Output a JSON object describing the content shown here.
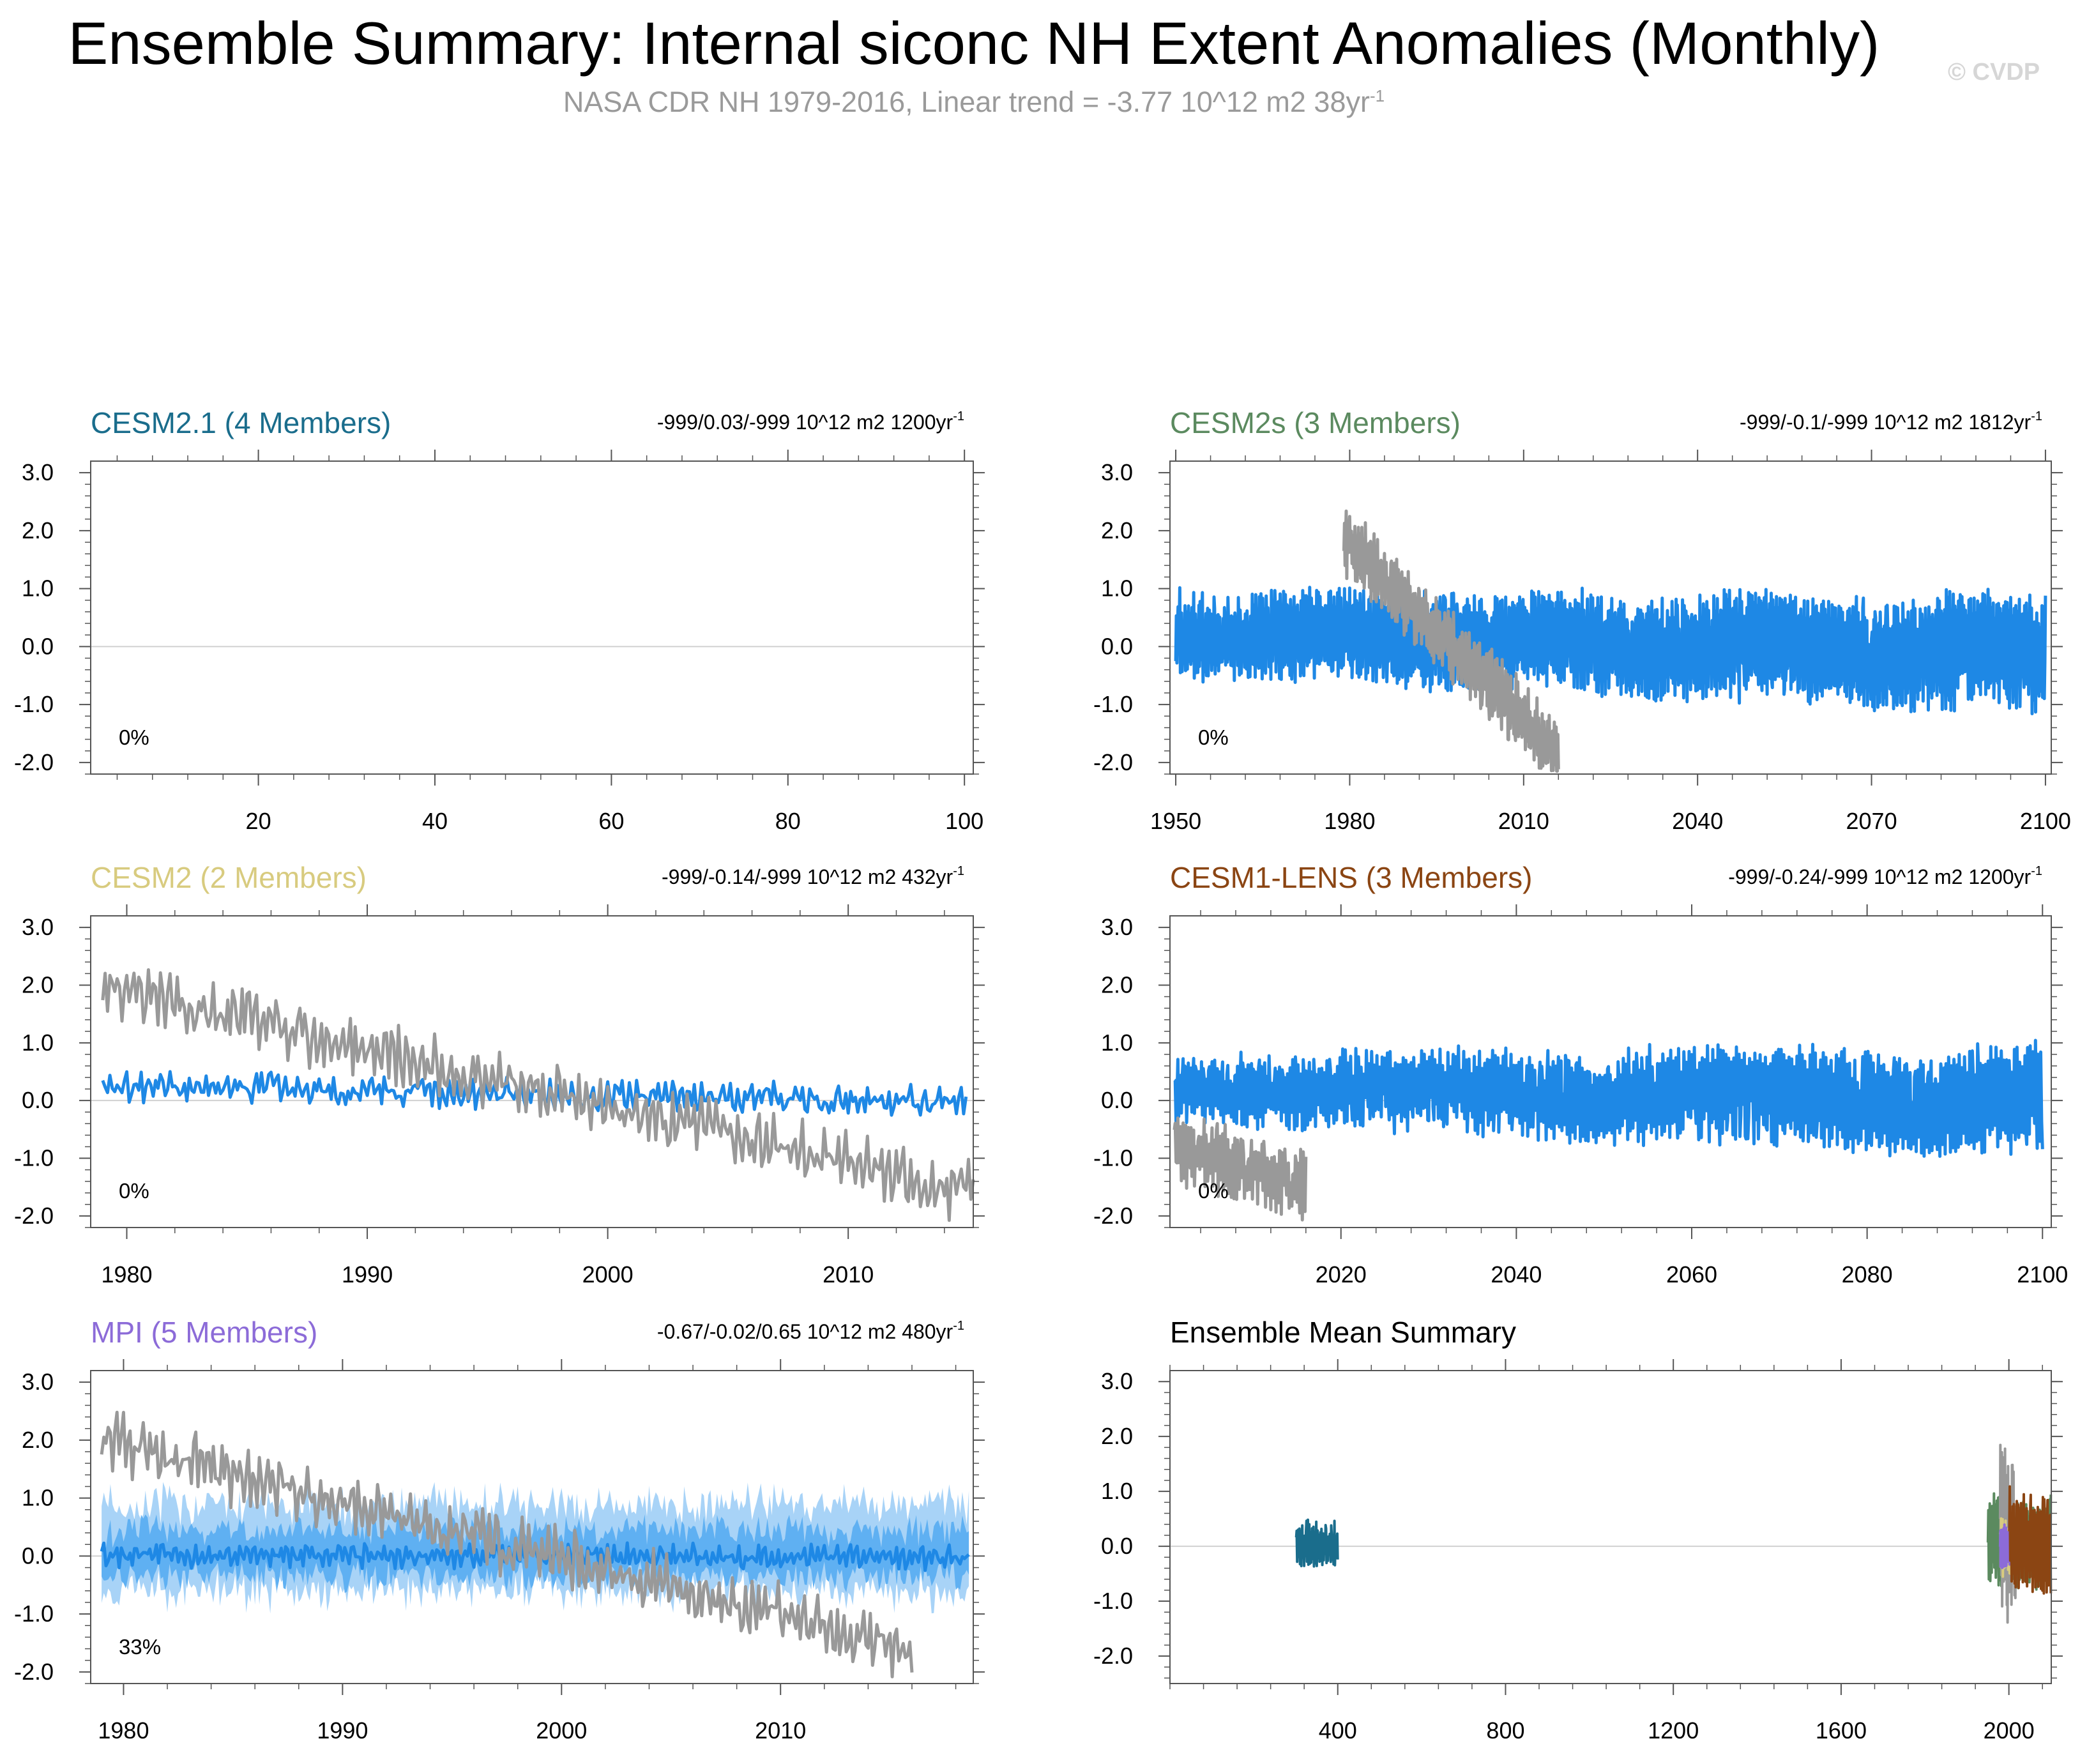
{
  "title": "Ensemble Summary: Internal siconc NH Extent Anomalies (Monthly)",
  "subtitle": "NASA CDR NH 1979-2016, Linear trend = -3.77 10^12 m2 38yr",
  "subtitle_sup": "-1",
  "copyright": "© CVDP",
  "colors": {
    "observations": "#999999",
    "ensemble_line": "#1e88e5",
    "spread_light": "#a8d3f7",
    "spread_mid": "#5fb0f2",
    "axis": "#555555",
    "zero_line": "#d0d0d0"
  },
  "chart_data": [
    {
      "id": "cesm21",
      "type": "line",
      "title": "CESM2.1 (4 Members)",
      "title_color": "#1a6d8c",
      "trend": "-999/0.03/-999 10^12 m2 1200yr",
      "trend_sup": "-1",
      "pct": "0%",
      "xlim": [
        1,
        101
      ],
      "ylim": [
        -2.2,
        3.2
      ],
      "xticks": [
        20,
        40,
        60,
        80,
        100
      ],
      "yticks": [
        3.0,
        2.0,
        1.0,
        0.0,
        -1.0,
        -2.0
      ],
      "ytick_labels": [
        "3.0",
        "2.0",
        "1.0",
        "0.0",
        "-1.0",
        "-2.0"
      ],
      "series": []
    },
    {
      "id": "cesm2s",
      "type": "line",
      "title": "CESM2s (3 Members)",
      "title_color": "#5b8a5f",
      "trend": "-999/-0.1/-999 10^12 m2 1812yr",
      "trend_sup": "-1",
      "pct": "0%",
      "xlim": [
        1949,
        2101
      ],
      "ylim": [
        -2.2,
        3.2
      ],
      "xticks": [
        1950,
        1980,
        2010,
        2040,
        2070,
        2100
      ],
      "yticks": [
        3.0,
        2.0,
        1.0,
        0.0,
        -1.0,
        -2.0
      ],
      "ytick_labels": [
        "3.0",
        "2.0",
        "1.0",
        "0.0",
        "-1.0",
        "-2.0"
      ],
      "series": [
        {
          "name": "ensemble",
          "color": "#1e88e5",
          "x_start": 1950,
          "x_end": 2100,
          "mean": 0.05,
          "trend": -0.35,
          "amp_start": 0.6,
          "amp_end": 0.9,
          "noise": 0.22
        },
        {
          "name": "observations",
          "color": "#999999",
          "x_start": 1979,
          "x_end": 2016,
          "mean": 0.0,
          "trend": -3.8,
          "amp_start": 0.45,
          "amp_end": 0.45,
          "noise": 0.25
        }
      ]
    },
    {
      "id": "cesm2",
      "type": "line",
      "title": "CESM2 (2 Members)",
      "title_color": "#d8cb7f",
      "trend": "-999/-0.14/-999 10^12 m2 432yr",
      "trend_sup": "-1",
      "pct": "0%",
      "xlim": [
        1978.5,
        2015.2
      ],
      "ylim": [
        -2.2,
        3.2
      ],
      "xticks": [
        1980,
        1990,
        2000,
        2010
      ],
      "yticks": [
        3.0,
        2.0,
        1.0,
        0.0,
        -1.0,
        -2.0
      ],
      "ytick_labels": [
        "3.0",
        "2.0",
        "1.0",
        "0.0",
        "-1.0",
        "-2.0"
      ],
      "series": [
        {
          "name": "ensemble",
          "color": "#1e88e5",
          "x_start": 1979,
          "x_end": 2014.9,
          "mean": 0.12,
          "trend": -0.3,
          "amp_start": 0.12,
          "amp_end": 0.12,
          "noise": 0.18
        },
        {
          "name": "observations",
          "color": "#999999",
          "x_start": 1979,
          "x_end": 2015.2,
          "mean": 0.2,
          "trend": -3.6,
          "amp_start": 0.3,
          "amp_end": 0.3,
          "noise": 0.3
        }
      ]
    },
    {
      "id": "cesm1lens",
      "type": "line",
      "title": "CESM1-LENS (3 Members)",
      "title_color": "#8b4513",
      "trend": "-999/-0.24/-999 10^12 m2 1200yr",
      "trend_sup": "-1",
      "pct": "0%",
      "xlim": [
        2000.5,
        2101
      ],
      "ylim": [
        -2.2,
        3.2
      ],
      "xticks": [
        2020,
        2040,
        2060,
        2080,
        2100
      ],
      "yticks": [
        3.0,
        2.0,
        1.0,
        0.0,
        -1.0,
        -2.0
      ],
      "ytick_labels": [
        "3.0",
        "2.0",
        "1.0",
        "0.0",
        "-1.0",
        "-2.0"
      ],
      "series": [
        {
          "name": "ensemble",
          "color": "#1e88e5",
          "x_start": 2001,
          "x_end": 2100,
          "mean": 0.1,
          "trend": -0.25,
          "amp_start": 0.5,
          "amp_end": 0.9,
          "noise": 0.18
        },
        {
          "name": "observations",
          "color": "#999999",
          "x_start": 2001,
          "x_end": 2016,
          "mean": -1.1,
          "trend": -0.6,
          "amp_start": 0.45,
          "amp_end": 0.45,
          "noise": 0.25
        }
      ]
    },
    {
      "id": "mpi",
      "type": "area",
      "title": "MPI (5 Members)",
      "title_color": "#8c6bd8",
      "trend": "-0.67/-0.02/0.65 10^12 m2 480yr",
      "trend_sup": "-1",
      "pct": "33%",
      "xlim": [
        1978.5,
        2018.8
      ],
      "ylim": [
        -2.2,
        3.2
      ],
      "xticks": [
        1980,
        1990,
        2000,
        2010
      ],
      "yticks": [
        3.0,
        2.0,
        1.0,
        0.0,
        -1.0,
        -2.0
      ],
      "ytick_labels": [
        "3.0",
        "2.0",
        "1.0",
        "0.0",
        "-1.0",
        "-2.0"
      ],
      "series": [
        {
          "name": "spread-outer",
          "color": "#a8d3f7",
          "x_start": 1979,
          "x_end": 2018.6,
          "mean": 0.15,
          "half_width": 0.75
        },
        {
          "name": "spread-inner",
          "color": "#5fb0f2",
          "x_start": 1979,
          "x_end": 2018.6,
          "mean": 0.05,
          "half_width": 0.4
        },
        {
          "name": "ensemble",
          "color": "#1e88e5",
          "x_start": 1979,
          "x_end": 2018.6,
          "mean": 0.0,
          "trend": -0.05,
          "amp_start": 0.12,
          "amp_end": 0.12,
          "noise": 0.12
        },
        {
          "name": "observations",
          "color": "#999999",
          "x_start": 1979,
          "x_end": 2016,
          "mean": 0.2,
          "trend": -3.6,
          "amp_start": 0.3,
          "amp_end": 0.3,
          "noise": 0.3
        }
      ]
    },
    {
      "id": "ensmean",
      "type": "line",
      "title": "Ensemble Mean Summary",
      "title_color": "#000000",
      "trend": "",
      "trend_sup": "",
      "pct": "",
      "xlim": [
        0,
        2101
      ],
      "ylim": [
        -2.5,
        3.2
      ],
      "xticks": [
        400,
        800,
        1200,
        1600,
        2000
      ],
      "yticks": [
        3.0,
        2.0,
        1.0,
        0.0,
        -1.0,
        -2.0
      ],
      "ytick_labels": [
        "3.0",
        "2.0",
        "1.0",
        "0.0",
        "-1.0",
        "-2.0"
      ],
      "series": [
        {
          "name": "CESM2.1",
          "color": "#1a6d8c",
          "x_start": 301,
          "x_end": 400,
          "mean": 0.05,
          "amp_start": 0.35,
          "amp_end": 0.35,
          "noise": 0.12
        },
        {
          "name": "CESM2s",
          "color": "#5b8a5f",
          "x_start": 1950,
          "x_end": 2100,
          "mean": 0.15,
          "amp_start": 0.7,
          "amp_end": 0.7,
          "noise": 0.25
        },
        {
          "name": "observations",
          "color": "#999999",
          "x_start": 1979,
          "x_end": 2016,
          "mean": 0.3,
          "amp_start": 1.1,
          "amp_end": 1.1,
          "noise": 0.6
        },
        {
          "name": "CESM2",
          "color": "#d8cb7f",
          "x_start": 1979,
          "x_end": 2015,
          "mean": 0.0,
          "amp_start": 0.4,
          "amp_end": 0.4,
          "noise": 0.2
        },
        {
          "name": "MPI",
          "color": "#8c6bd8",
          "x_start": 1979,
          "x_end": 2018,
          "mean": 0.0,
          "amp_start": 0.35,
          "amp_end": 0.35,
          "noise": 0.12
        },
        {
          "name": "CESM1-LENS",
          "color": "#8b4513",
          "x_start": 2001,
          "x_end": 2100,
          "mean": 0.1,
          "amp_start": 0.8,
          "amp_end": 0.8,
          "noise": 0.2
        }
      ]
    }
  ]
}
